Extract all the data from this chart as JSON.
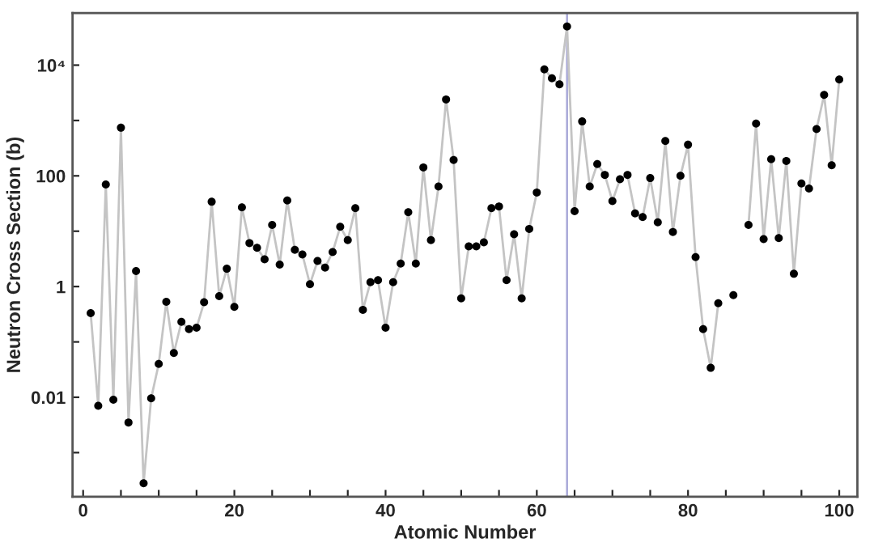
{
  "chart_data": {
    "type": "line",
    "xlabel": "Atomic Number",
    "ylabel": "Neutron Cross Section (b)",
    "log": "y",
    "grid": false,
    "legend": false,
    "marker": "circle",
    "line_style": "solid",
    "xlim": [
      -1.4,
      102.4
    ],
    "ylim": [
      0.00016,
      87000
    ],
    "xticks": [
      0,
      {
        "value": 5,
        "label": null
      },
      {
        "value": 10,
        "label": null
      },
      {
        "value": 15,
        "label": null
      },
      20,
      {
        "value": 25,
        "label": null
      },
      {
        "value": 30,
        "label": null
      },
      {
        "value": 35,
        "label": null
      },
      40,
      {
        "value": 45,
        "label": null
      },
      {
        "value": 50,
        "label": null
      },
      {
        "value": 55,
        "label": null
      },
      60,
      {
        "value": 65,
        "label": null
      },
      {
        "value": 70,
        "label": null
      },
      {
        "value": 75,
        "label": null
      },
      80,
      {
        "value": 85,
        "label": null
      },
      {
        "value": 90,
        "label": null
      },
      {
        "value": 95,
        "label": null
      },
      100
    ],
    "yticks": [
      {
        "value": 0.001,
        "label": null
      },
      0.01,
      {
        "value": 0.1,
        "label": null
      },
      1,
      {
        "value": 10,
        "label": null
      },
      100,
      {
        "value": 1000,
        "label": null
      },
      {
        "value": 10000,
        "label": "10⁴"
      }
    ],
    "ref_lines": [
      {
        "axis": "x",
        "value": 64,
        "color": "#a8a8d8",
        "line_style": "solid"
      }
    ],
    "x": [
      1,
      2,
      3,
      4,
      5,
      6,
      7,
      8,
      9,
      10,
      11,
      12,
      13,
      14,
      15,
      16,
      17,
      18,
      19,
      20,
      21,
      22,
      23,
      24,
      25,
      26,
      27,
      28,
      29,
      30,
      31,
      32,
      33,
      34,
      35,
      36,
      37,
      38,
      39,
      40,
      41,
      42,
      43,
      44,
      45,
      46,
      47,
      48,
      49,
      50,
      51,
      52,
      53,
      54,
      55,
      56,
      57,
      58,
      59,
      60,
      61,
      62,
      63,
      64,
      65,
      66,
      67,
      68,
      69,
      70,
      71,
      72,
      73,
      74,
      75,
      76,
      77,
      78,
      79,
      80,
      81,
      82,
      83,
      84,
      85,
      86,
      87,
      88,
      89,
      90,
      91,
      92,
      93,
      94,
      95,
      96,
      97,
      98,
      99,
      100
    ],
    "series": [
      {
        "color": "#000000",
        "values": [
          0.33,
          0.007,
          70,
          0.009,
          740,
          0.0035,
          1.9,
          0.00028,
          0.0096,
          0.04,
          0.53,
          0.063,
          0.23,
          0.17,
          0.18,
          0.52,
          34,
          0.67,
          2.1,
          0.43,
          27,
          6.1,
          5.0,
          3.1,
          13,
          2.5,
          36,
          4.6,
          3.8,
          1.1,
          2.9,
          2.2,
          4.2,
          12,
          6.9,
          26,
          0.38,
          1.2,
          1.3,
          0.18,
          1.2,
          2.6,
          22,
          2.6,
          142,
          6.9,
          64,
          2400,
          194,
          0.61,
          5.3,
          5.3,
          6.3,
          26,
          28,
          1.3,
          8.8,
          0.61,
          11,
          50,
          8400,
          5800,
          4500,
          50000,
          23,
          960,
          64,
          163,
          104,
          35,
          87,
          104,
          21,
          18,
          91,
          14.5,
          425,
          9.7,
          100,
          365,
          3.4,
          0.17,
          0.034,
          0.5,
          null,
          0.7,
          null,
          13,
          880,
          7.2,
          200,
          7.5,
          186,
          1.7,
          73,
          59,
          700,
          2900,
          155,
          5500
        ]
      }
    ]
  }
}
